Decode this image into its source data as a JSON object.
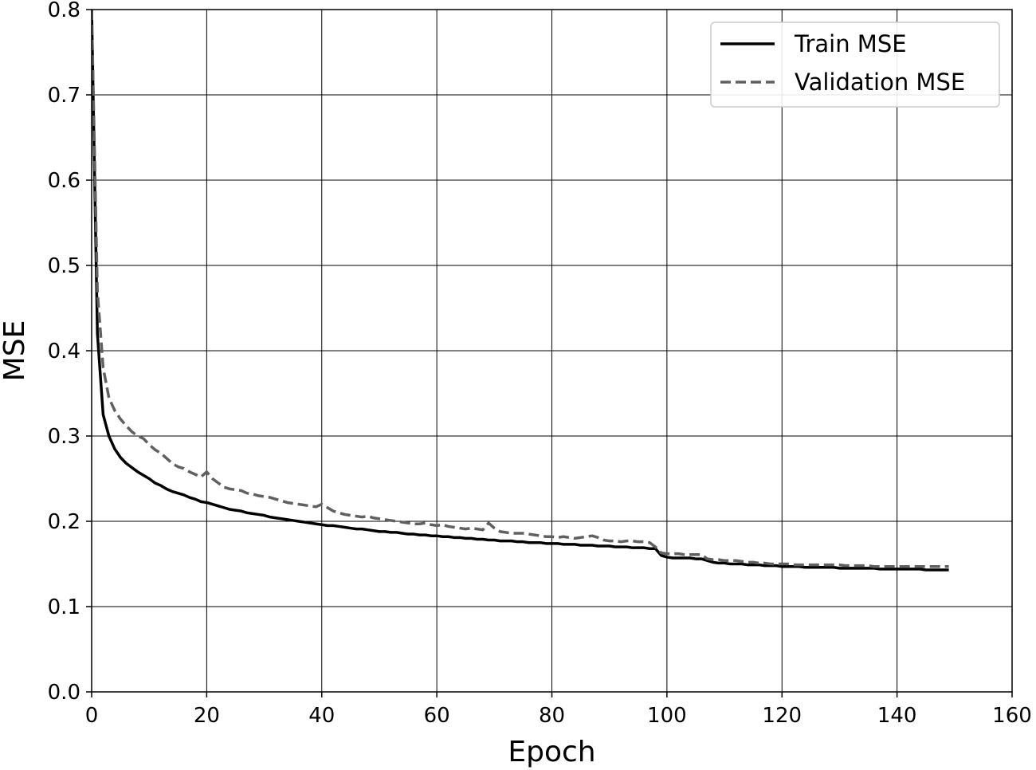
{
  "chart_data": {
    "type": "line",
    "xlabel": "Epoch",
    "ylabel": "MSE",
    "xlim": [
      0,
      160
    ],
    "ylim": [
      0.0,
      0.8
    ],
    "x_ticks": [
      "0",
      "20",
      "40",
      "60",
      "80",
      "100",
      "120",
      "140",
      "160"
    ],
    "y_ticks": [
      "0.0",
      "0.1",
      "0.2",
      "0.3",
      "0.4",
      "0.5",
      "0.6",
      "0.7",
      "0.8"
    ],
    "grid": true,
    "legend_position": "top-right",
    "x": [
      0,
      1,
      2,
      3,
      4,
      5,
      6,
      7,
      8,
      9,
      10,
      11,
      12,
      13,
      14,
      15,
      16,
      17,
      18,
      19,
      20,
      21,
      22,
      23,
      24,
      25,
      26,
      27,
      28,
      29,
      30,
      31,
      32,
      33,
      34,
      35,
      36,
      37,
      38,
      39,
      40,
      41,
      42,
      43,
      44,
      45,
      46,
      47,
      48,
      49,
      50,
      51,
      52,
      53,
      54,
      55,
      56,
      57,
      58,
      59,
      60,
      61,
      62,
      63,
      64,
      65,
      66,
      67,
      68,
      69,
      70,
      71,
      72,
      73,
      74,
      75,
      76,
      77,
      78,
      79,
      80,
      81,
      82,
      83,
      84,
      85,
      86,
      87,
      88,
      89,
      90,
      91,
      92,
      93,
      94,
      95,
      96,
      97,
      98,
      99,
      100,
      101,
      102,
      103,
      104,
      105,
      106,
      107,
      108,
      109,
      110,
      111,
      112,
      113,
      114,
      115,
      116,
      117,
      118,
      119,
      120,
      121,
      122,
      123,
      124,
      125,
      126,
      127,
      128,
      129,
      130,
      131,
      132,
      133,
      134,
      135,
      136,
      137,
      138,
      139,
      140,
      141,
      142,
      143,
      144,
      145,
      146,
      147,
      148,
      149
    ],
    "series": [
      {
        "name": "Train MSE",
        "color": "#000000",
        "dash": "solid",
        "values": [
          0.8,
          0.42,
          0.325,
          0.3,
          0.285,
          0.275,
          0.268,
          0.263,
          0.258,
          0.254,
          0.25,
          0.245,
          0.242,
          0.238,
          0.235,
          0.233,
          0.231,
          0.228,
          0.226,
          0.223,
          0.222,
          0.22,
          0.218,
          0.216,
          0.214,
          0.213,
          0.212,
          0.21,
          0.209,
          0.208,
          0.207,
          0.205,
          0.204,
          0.203,
          0.202,
          0.201,
          0.2,
          0.199,
          0.198,
          0.197,
          0.196,
          0.195,
          0.195,
          0.194,
          0.193,
          0.192,
          0.191,
          0.191,
          0.19,
          0.189,
          0.188,
          0.188,
          0.187,
          0.187,
          0.186,
          0.185,
          0.185,
          0.184,
          0.184,
          0.183,
          0.183,
          0.182,
          0.182,
          0.181,
          0.181,
          0.18,
          0.18,
          0.179,
          0.179,
          0.178,
          0.178,
          0.177,
          0.177,
          0.177,
          0.176,
          0.176,
          0.175,
          0.175,
          0.175,
          0.174,
          0.174,
          0.174,
          0.173,
          0.173,
          0.173,
          0.172,
          0.172,
          0.172,
          0.171,
          0.171,
          0.171,
          0.17,
          0.17,
          0.17,
          0.169,
          0.169,
          0.169,
          0.168,
          0.168,
          0.16,
          0.158,
          0.157,
          0.157,
          0.157,
          0.157,
          0.156,
          0.156,
          0.154,
          0.152,
          0.151,
          0.151,
          0.15,
          0.15,
          0.15,
          0.149,
          0.149,
          0.149,
          0.148,
          0.148,
          0.148,
          0.147,
          0.147,
          0.147,
          0.147,
          0.146,
          0.146,
          0.146,
          0.146,
          0.146,
          0.146,
          0.145,
          0.145,
          0.145,
          0.145,
          0.145,
          0.145,
          0.145,
          0.144,
          0.144,
          0.144,
          0.144,
          0.144,
          0.144,
          0.144,
          0.144,
          0.143,
          0.143,
          0.143,
          0.143,
          0.143
        ]
      },
      {
        "name": "Validation MSE",
        "color": "#606060",
        "dash": "dashed",
        "values": [
          0.8,
          0.47,
          0.38,
          0.345,
          0.33,
          0.32,
          0.312,
          0.305,
          0.3,
          0.297,
          0.29,
          0.284,
          0.28,
          0.274,
          0.268,
          0.264,
          0.262,
          0.258,
          0.255,
          0.252,
          0.258,
          0.25,
          0.245,
          0.24,
          0.238,
          0.237,
          0.236,
          0.233,
          0.232,
          0.23,
          0.229,
          0.228,
          0.226,
          0.224,
          0.222,
          0.221,
          0.22,
          0.219,
          0.218,
          0.217,
          0.22,
          0.216,
          0.212,
          0.21,
          0.208,
          0.207,
          0.206,
          0.205,
          0.206,
          0.204,
          0.203,
          0.202,
          0.201,
          0.2,
          0.199,
          0.198,
          0.197,
          0.197,
          0.198,
          0.196,
          0.195,
          0.196,
          0.194,
          0.193,
          0.192,
          0.191,
          0.192,
          0.191,
          0.19,
          0.198,
          0.192,
          0.188,
          0.187,
          0.186,
          0.186,
          0.186,
          0.185,
          0.184,
          0.183,
          0.182,
          0.182,
          0.181,
          0.182,
          0.181,
          0.18,
          0.181,
          0.182,
          0.183,
          0.181,
          0.178,
          0.177,
          0.177,
          0.176,
          0.177,
          0.177,
          0.176,
          0.176,
          0.175,
          0.17,
          0.163,
          0.162,
          0.162,
          0.162,
          0.161,
          0.161,
          0.161,
          0.161,
          0.156,
          0.155,
          0.155,
          0.154,
          0.154,
          0.154,
          0.153,
          0.152,
          0.152,
          0.151,
          0.151,
          0.15,
          0.15,
          0.15,
          0.15,
          0.149,
          0.149,
          0.149,
          0.149,
          0.149,
          0.149,
          0.149,
          0.149,
          0.149,
          0.148,
          0.148,
          0.148,
          0.148,
          0.148,
          0.147,
          0.147,
          0.147,
          0.147,
          0.147,
          0.147,
          0.147,
          0.147,
          0.147,
          0.147,
          0.147,
          0.147,
          0.147,
          0.147
        ]
      }
    ]
  }
}
